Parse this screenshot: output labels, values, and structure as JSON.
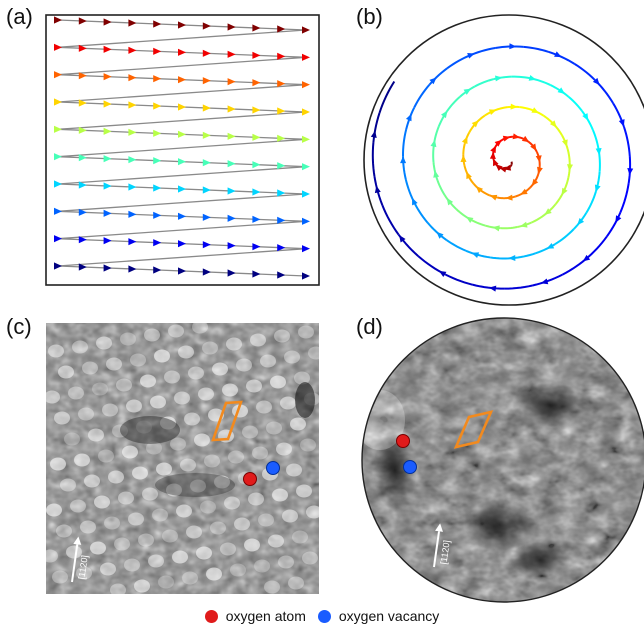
{
  "panels": {
    "a": {
      "label": "(a)"
    },
    "b": {
      "label": "(b)"
    },
    "c": {
      "label": "(c)",
      "direction_label": "[1120]"
    },
    "d": {
      "label": "(d)",
      "direction_label": "[1120]"
    }
  },
  "legend": [
    {
      "label": "oxygen atom",
      "color": "#e01b1b"
    },
    {
      "label": "oxygen vacancy",
      "color": "#1a5cff"
    }
  ],
  "colors": {
    "lattice_marker": "#f28a1e",
    "scan_path": "#8a8a8a",
    "oxygen_atom": "#e01b1b",
    "oxygen_vacancy": "#1a5cff"
  },
  "raster_scan": {
    "lines": 10,
    "arrows_per_line": 11
  },
  "spiral_scan": {
    "turns": 4.5
  }
}
